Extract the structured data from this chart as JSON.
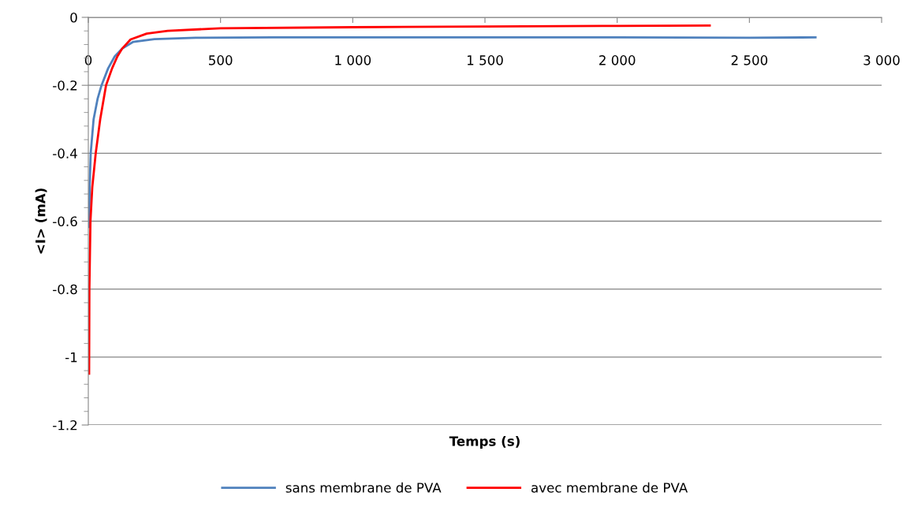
{
  "chart_data": {
    "type": "line",
    "xlabel": "Temps (s)",
    "ylabel": "<I> (mA)",
    "xlim": [
      0,
      3000
    ],
    "xticks": [
      0,
      {
        "value": 500,
        "label": "500"
      },
      {
        "value": 1000,
        "label": "1 000"
      },
      {
        "value": 1500,
        "label": "1 500"
      },
      {
        "value": 2000,
        "label": "2 000"
      },
      {
        "value": 2500,
        "label": "2 500"
      },
      {
        "value": 3000,
        "label": "3 000"
      }
    ],
    "ylim": [
      -1.2,
      0
    ],
    "yticks": [
      {
        "value": -1.2,
        "label": "-1.2"
      },
      {
        "value": -1.0,
        "label": "-1"
      },
      {
        "value": -0.8,
        "label": "-0.8"
      },
      {
        "value": -0.6,
        "label": "-0.6"
      },
      {
        "value": -0.4,
        "label": "-0.4"
      },
      {
        "value": -0.2,
        "label": "-0.2"
      },
      {
        "value": 0,
        "label": "0"
      }
    ],
    "grid": "y",
    "legend": "bottom",
    "marker": "none",
    "line_style": "solid",
    "series": [
      {
        "name": "sans membrane de PVA",
        "color": "#4f81bd",
        "x": [
          3,
          5,
          9,
          20,
          35,
          50,
          75,
          100,
          128,
          170,
          250,
          406,
          700,
          1000,
          1500,
          2000,
          2500,
          2750
        ],
        "values": [
          -0.617,
          -0.5,
          -0.4,
          -0.3,
          -0.24,
          -0.2,
          -0.15,
          -0.115,
          -0.092,
          -0.072,
          -0.064,
          -0.06,
          -0.059,
          -0.059,
          -0.059,
          -0.059,
          -0.06,
          -0.059
        ]
      },
      {
        "name": "avec membrane de PVA",
        "color": "#ff0000",
        "x": [
          3,
          4,
          8,
          15,
          28,
          45,
          67,
          90,
          110,
          128,
          160,
          221,
          300,
          500,
          1000,
          1500,
          2000,
          2350
        ],
        "values": [
          -1.049,
          -0.8,
          -0.6,
          -0.5,
          -0.4,
          -0.3,
          -0.2,
          -0.15,
          -0.115,
          -0.092,
          -0.065,
          -0.048,
          -0.04,
          -0.032,
          -0.029,
          -0.027,
          -0.025,
          -0.024
        ]
      }
    ]
  }
}
